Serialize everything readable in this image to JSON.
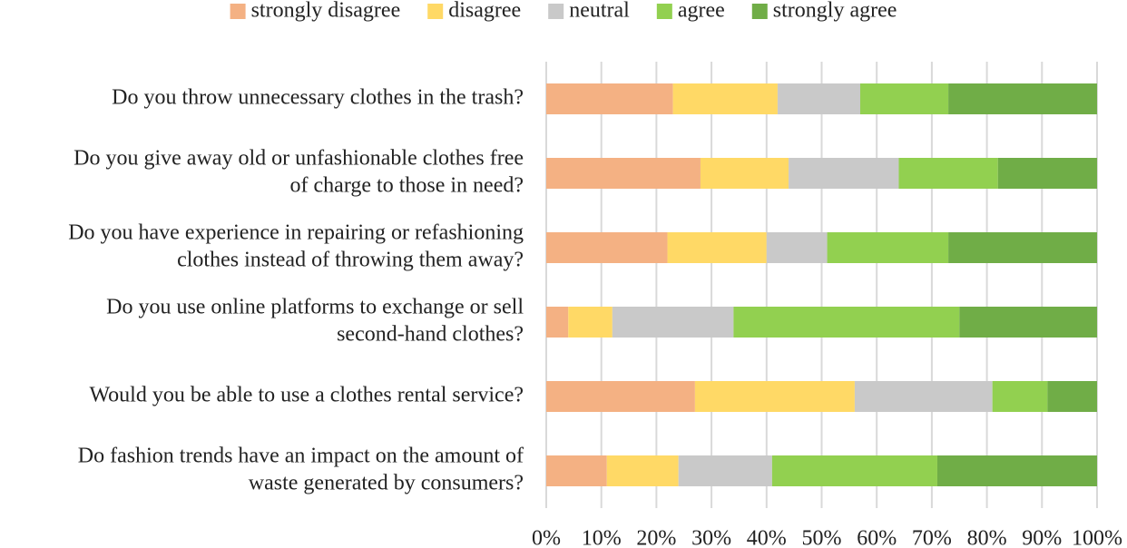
{
  "chart_data": {
    "type": "stacked_barh_percent",
    "categories": [
      [
        "Do you throw unnecessary clothes in the trash?"
      ],
      [
        "Do you give away old or unfashionable clothes free",
        "of charge to those in need?"
      ],
      [
        "Do you have experience in repairing or refashioning",
        "clothes instead of throwing them away?"
      ],
      [
        "Do you use online platforms to exchange or sell",
        "second-hand clothes?"
      ],
      [
        "Would you be able to use a clothes rental service?"
      ],
      [
        "Do fashion trends have an impact on the amount of",
        "waste generated by consumers?"
      ]
    ],
    "series": [
      {
        "name": "strongly disagree",
        "color": "#f4b183",
        "values": [
          23,
          28,
          22,
          4,
          27,
          11
        ]
      },
      {
        "name": "disagree",
        "color": "#ffd966",
        "values": [
          19,
          16,
          18,
          8,
          29,
          13
        ]
      },
      {
        "name": "neutral",
        "color": "#c9c9c9",
        "values": [
          15,
          20,
          11,
          22,
          25,
          17
        ]
      },
      {
        "name": "agree",
        "color": "#92d050",
        "values": [
          16,
          18,
          22,
          41,
          10,
          30
        ]
      },
      {
        "name": "strongly agree",
        "color": "#70ad47",
        "values": [
          27,
          18,
          27,
          25,
          9,
          29
        ]
      }
    ],
    "xlim": [
      0,
      100
    ],
    "xticks": [
      {
        "value": 0,
        "label": "0%"
      },
      {
        "value": 10,
        "label": "10%"
      },
      {
        "value": 20,
        "label": "20%"
      },
      {
        "value": 30,
        "label": "30%"
      },
      {
        "value": 40,
        "label": "40%"
      },
      {
        "value": 50,
        "label": "50%"
      },
      {
        "value": 60,
        "label": "60%"
      },
      {
        "value": 70,
        "label": "70%"
      },
      {
        "value": 80,
        "label": "80%"
      },
      {
        "value": 90,
        "label": "90%"
      },
      {
        "value": 100,
        "label": "100%"
      }
    ],
    "grid": true,
    "legend": "top"
  }
}
